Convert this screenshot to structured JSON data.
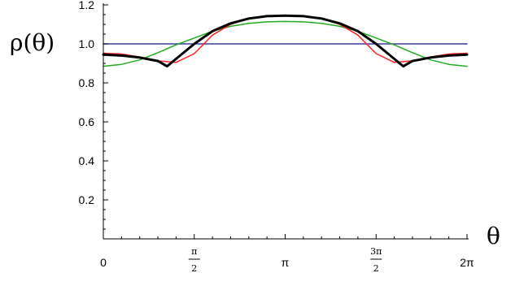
{
  "chart_data": {
    "type": "line",
    "ylabel": "ρ(θ)",
    "xlabel": "θ",
    "xlim": [
      0,
      6.2832
    ],
    "ylim": [
      0,
      1.2
    ],
    "x_ticks": [
      {
        "value": 0,
        "label": "0"
      },
      {
        "value": 1.5708,
        "num": "π",
        "den": "2"
      },
      {
        "value": 3.1416,
        "label": "π"
      },
      {
        "value": 4.7124,
        "num": "3π",
        "den": "2"
      },
      {
        "value": 6.2832,
        "label": "2π"
      }
    ],
    "y_ticks": [
      "0.2",
      "0.4",
      "0.6",
      "0.8",
      "1.0",
      "1.2"
    ],
    "series": [
      {
        "color": "#3b3b9e",
        "width": 1.5,
        "points": [
          [
            0,
            1.0
          ],
          [
            6.2832,
            1.0
          ]
        ]
      },
      {
        "color": "#22aa22",
        "width": 1.5,
        "points": [
          [
            0,
            0.885
          ],
          [
            0.3142,
            0.895
          ],
          [
            0.6283,
            0.918
          ],
          [
            0.9425,
            0.955
          ],
          [
            1.2566,
            0.995
          ],
          [
            1.5708,
            1.03
          ],
          [
            1.885,
            1.065
          ],
          [
            2.1991,
            1.09
          ],
          [
            2.5133,
            1.105
          ],
          [
            2.8274,
            1.113
          ],
          [
            3.1416,
            1.115
          ],
          [
            3.4558,
            1.113
          ],
          [
            3.7699,
            1.105
          ],
          [
            4.0841,
            1.09
          ],
          [
            4.3982,
            1.065
          ],
          [
            4.7124,
            1.03
          ],
          [
            5.0265,
            0.995
          ],
          [
            5.3407,
            0.955
          ],
          [
            5.6549,
            0.918
          ],
          [
            5.969,
            0.895
          ],
          [
            6.2832,
            0.885
          ]
        ]
      },
      {
        "color": "#ff2020",
        "width": 1.5,
        "points": [
          [
            0,
            0.952
          ],
          [
            0.3142,
            0.948
          ],
          [
            0.6283,
            0.933
          ],
          [
            0.9425,
            0.913
          ],
          [
            1.2566,
            0.905
          ],
          [
            1.5708,
            0.95
          ],
          [
            1.885,
            1.045
          ],
          [
            2.1991,
            1.1
          ],
          [
            2.5133,
            1.13
          ],
          [
            2.8274,
            1.143
          ],
          [
            3.1416,
            1.145
          ],
          [
            3.4558,
            1.143
          ],
          [
            3.7699,
            1.13
          ],
          [
            4.0841,
            1.1
          ],
          [
            4.3982,
            1.045
          ],
          [
            4.7124,
            0.95
          ],
          [
            5.0265,
            0.905
          ],
          [
            5.3407,
            0.913
          ],
          [
            5.6549,
            0.933
          ],
          [
            5.969,
            0.948
          ],
          [
            6.2832,
            0.952
          ]
        ]
      },
      {
        "color": "#000000",
        "width": 3,
        "points": [
          [
            0,
            0.945
          ],
          [
            0.3142,
            0.94
          ],
          [
            0.6283,
            0.93
          ],
          [
            0.9425,
            0.912
          ],
          [
            1.1,
            0.885
          ],
          [
            1.5708,
            1.0
          ],
          [
            1.885,
            1.065
          ],
          [
            2.1991,
            1.105
          ],
          [
            2.5133,
            1.13
          ],
          [
            2.8274,
            1.142
          ],
          [
            3.1416,
            1.145
          ],
          [
            3.4558,
            1.142
          ],
          [
            3.7699,
            1.13
          ],
          [
            4.0841,
            1.105
          ],
          [
            4.3982,
            1.065
          ],
          [
            4.7124,
            1.0
          ],
          [
            5.1832,
            0.885
          ],
          [
            5.3407,
            0.912
          ],
          [
            5.6549,
            0.93
          ],
          [
            5.969,
            0.94
          ],
          [
            6.2832,
            0.945
          ]
        ]
      }
    ]
  }
}
